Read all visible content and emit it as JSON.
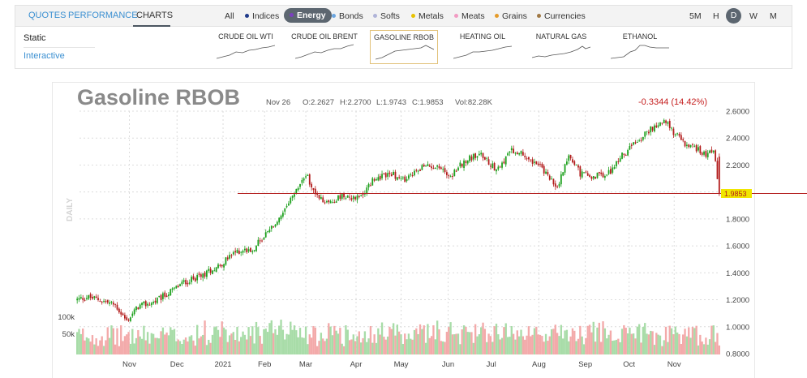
{
  "view_tabs": [
    "QUOTES",
    "PERFORMANCE",
    "CHARTS"
  ],
  "categories": [
    {
      "label": "All",
      "color": ""
    },
    {
      "label": "Indices",
      "color": "#1f3a8a"
    },
    {
      "label": "Energy",
      "color": "#7b3fbf"
    },
    {
      "label": "Bonds",
      "color": "#6ba5e0"
    },
    {
      "label": "Softs",
      "color": "#b0b4d8"
    },
    {
      "label": "Metals",
      "color": "#e8c200"
    },
    {
      "label": "Meats",
      "color": "#f29bc3"
    },
    {
      "label": "Grains",
      "color": "#e59b2a"
    },
    {
      "label": "Currencies",
      "color": "#a07844"
    }
  ],
  "frequencies": [
    "5M",
    "H",
    "D",
    "W",
    "M"
  ],
  "modes": {
    "static": "Static",
    "interactive": "Interactive"
  },
  "thumbnails": [
    {
      "label": "CRUDE OIL WTI",
      "icon": "sparkline-icon"
    },
    {
      "label": "CRUDE OIL BRENT",
      "icon": "sparkline-icon"
    },
    {
      "label": "GASOLINE RBOB",
      "icon": "sparkline-icon"
    },
    {
      "label": "HEATING OIL",
      "icon": "sparkline-icon"
    },
    {
      "label": "NATURAL GAS",
      "icon": "sparkline-icon"
    },
    {
      "label": "ETHANOL",
      "icon": "sparkline-icon"
    }
  ],
  "chart": {
    "title": "Gasoline RBOB",
    "date": "Nov 26",
    "open": "O:2.2627",
    "high": "H:2.2700",
    "low": "L:1.9743",
    "close": "C:1.9853",
    "volume": "Vol:82.28K",
    "change": "-0.3344 (14.42%)",
    "period_label": "DAILY",
    "last_price": "1.9853",
    "colors": {
      "up": "#1ca01c",
      "down": "#b21b1b",
      "vol_up": "#a8dca8",
      "vol_down": "#f3aaaa",
      "price_line": "#b21b1b",
      "price_tag": "#f0e600"
    }
  },
  "chart_data": {
    "type": "candlestick",
    "y_ticks": [
      "2.6000",
      "2.4000",
      "2.2000",
      "2.0000",
      "1.8000",
      "1.6000",
      "1.4000",
      "1.2000",
      "1.0000",
      "0.8000"
    ],
    "ylim": [
      0.8,
      2.6
    ],
    "volume_ticks": [
      "100k",
      "50k"
    ],
    "x_ticks": [
      "Nov",
      "Dec",
      "2021",
      "Feb",
      "Mar",
      "Apr",
      "May",
      "Jun",
      "Jul",
      "Aug",
      "Sep",
      "Oct",
      "Nov"
    ],
    "close_path": [
      {
        "t": 0,
        "v": 1.2
      },
      {
        "t": 5,
        "v": 1.22
      },
      {
        "t": 12,
        "v": 1.2
      },
      {
        "t": 20,
        "v": 1.16
      },
      {
        "t": 26,
        "v": 1.04
      },
      {
        "t": 32,
        "v": 1.15
      },
      {
        "t": 40,
        "v": 1.18
      },
      {
        "t": 48,
        "v": 1.25
      },
      {
        "t": 56,
        "v": 1.33
      },
      {
        "t": 63,
        "v": 1.36
      },
      {
        "t": 70,
        "v": 1.42
      },
      {
        "t": 77,
        "v": 1.48
      },
      {
        "t": 84,
        "v": 1.56
      },
      {
        "t": 92,
        "v": 1.58
      },
      {
        "t": 100,
        "v": 1.7
      },
      {
        "t": 108,
        "v": 1.83
      },
      {
        "t": 113,
        "v": 1.96
      },
      {
        "t": 120,
        "v": 2.13
      },
      {
        "t": 126,
        "v": 1.96
      },
      {
        "t": 132,
        "v": 1.92
      },
      {
        "t": 140,
        "v": 1.98
      },
      {
        "t": 148,
        "v": 1.95
      },
      {
        "t": 156,
        "v": 2.1
      },
      {
        "t": 164,
        "v": 2.14
      },
      {
        "t": 172,
        "v": 2.08
      },
      {
        "t": 180,
        "v": 2.18
      },
      {
        "t": 188,
        "v": 2.2
      },
      {
        "t": 196,
        "v": 2.12
      },
      {
        "t": 204,
        "v": 2.24
      },
      {
        "t": 212,
        "v": 2.28
      },
      {
        "t": 220,
        "v": 2.17
      },
      {
        "t": 228,
        "v": 2.3
      },
      {
        "t": 236,
        "v": 2.27
      },
      {
        "t": 244,
        "v": 2.17
      },
      {
        "t": 252,
        "v": 2.03
      },
      {
        "t": 258,
        "v": 2.28
      },
      {
        "t": 264,
        "v": 2.14
      },
      {
        "t": 270,
        "v": 2.12
      },
      {
        "t": 278,
        "v": 2.12
      },
      {
        "t": 286,
        "v": 2.27
      },
      {
        "t": 294,
        "v": 2.38
      },
      {
        "t": 302,
        "v": 2.48
      },
      {
        "t": 308,
        "v": 2.53
      },
      {
        "t": 314,
        "v": 2.43
      },
      {
        "t": 320,
        "v": 2.34
      },
      {
        "t": 326,
        "v": 2.32
      },
      {
        "t": 330,
        "v": 2.28
      },
      {
        "t": 334,
        "v": 2.32
      },
      {
        "t": 337,
        "v": 1.99
      }
    ]
  }
}
